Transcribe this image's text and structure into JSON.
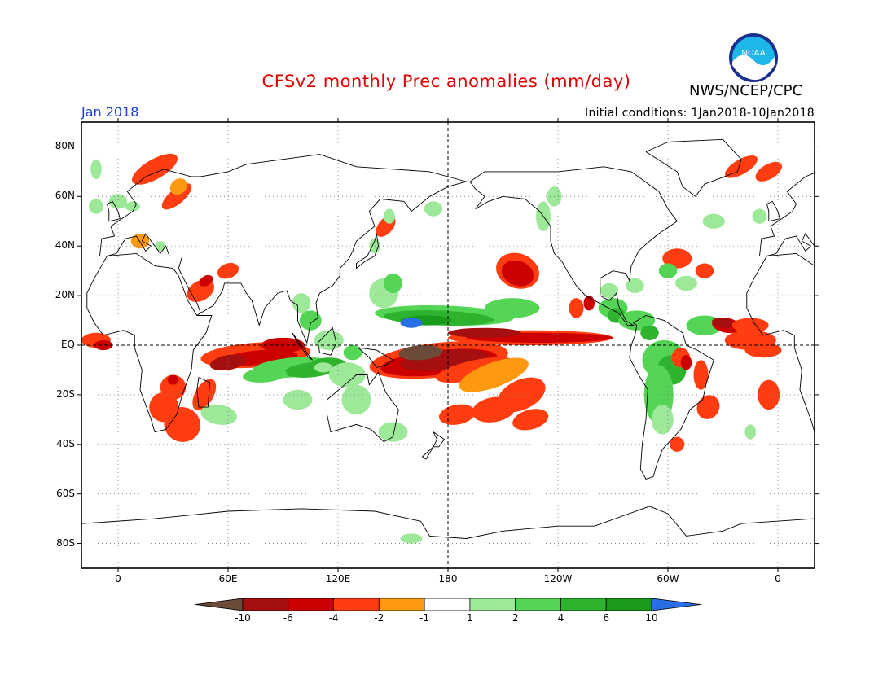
{
  "header": {
    "title": "CFSv2 monthly Prec anomalies (mm/day)",
    "agency": "NWS/NCEP/CPC",
    "month": "Jan 2018",
    "initial_conditions": "Initial conditions: 1Jan2018-10Jan2018",
    "logo_text": "NOAA"
  },
  "axes": {
    "lat_labels": [
      "80N",
      "60N",
      "40N",
      "20N",
      "EQ",
      "20S",
      "40S",
      "60S",
      "80S"
    ],
    "lon_labels": [
      "0",
      "60E",
      "120E",
      "180",
      "120W",
      "60W",
      "0"
    ]
  },
  "colorbar": {
    "labels": [
      "-10",
      "-6",
      "-4",
      "-2",
      "-1",
      "1",
      "2",
      "4",
      "6",
      "10"
    ],
    "colors": [
      "#6b4a3a",
      "#a50f0f",
      "#cc0000",
      "#ff3d10",
      "#ff9a10",
      "#ffffff",
      "#9ee89a",
      "#55d555",
      "#2db32d",
      "#1a9b1a",
      "#2a6ee6"
    ]
  },
  "chart_data": {
    "type": "heatmap",
    "title": "CFSv2 monthly Prec anomalies (mm/day)",
    "variable": "Precipitation anomaly",
    "units": "mm/day",
    "valid_month": "Jan 2018",
    "xlim": [
      -20,
      380
    ],
    "ylim": [
      -90,
      90
    ],
    "levels": [
      -10,
      -6,
      -4,
      -2,
      -1,
      1,
      2,
      4,
      6,
      10
    ],
    "features": [
      {
        "name": "central Pacific equatorial dry anomaly",
        "lon": 185,
        "lat": -7,
        "value": -8
      },
      {
        "name": "eastern equatorial Pacific dry band",
        "lon": 230,
        "lat": 4,
        "value": -4
      },
      {
        "name": "North Pacific wet band",
        "lon": 185,
        "lat": 11,
        "value": 4
      },
      {
        "name": "North Pacific maximum",
        "lon": 170,
        "lat": 9,
        "value": 10
      },
      {
        "name": "Indian Ocean dry band",
        "lon": 80,
        "lat": -6,
        "value": -4
      },
      {
        "name": "South Indian Ocean wet band",
        "lon": 110,
        "lat": -9,
        "value": 4
      },
      {
        "name": "Northeast Pacific dry patch",
        "lon": 218,
        "lat": 30,
        "value": -4
      },
      {
        "name": "southern Africa dry",
        "lon": 30,
        "lat": -32,
        "value": -2
      },
      {
        "name": "South America wet",
        "lon": 300,
        "lat": -10,
        "value": 4
      },
      {
        "name": "tropical Atlantic dry",
        "lon": 330,
        "lat": 8,
        "value": -4
      }
    ]
  }
}
